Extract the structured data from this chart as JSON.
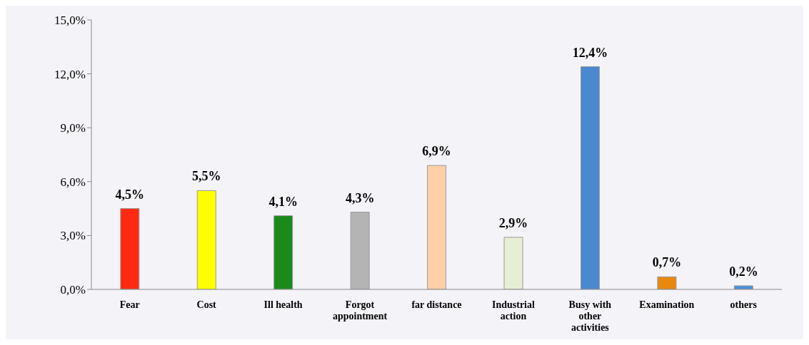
{
  "chart_data": {
    "type": "bar",
    "categories": [
      "Fear",
      "Cost",
      "Ill health",
      "Forgot appointment",
      "far distance",
      "Industrial action",
      "Busy with other activities",
      "Examination",
      "others"
    ],
    "values": [
      4.5,
      5.5,
      4.1,
      4.3,
      6.9,
      2.9,
      12.4,
      0.7,
      0.2
    ],
    "colors": [
      "#ff2a10",
      "#ffff00",
      "#1a8a1a",
      "#b4b4b4",
      "#ffd0a8",
      "#e6efd6",
      "#4a88d0",
      "#e8880e",
      "#4a90dc"
    ],
    "value_labels": [
      "4,5%",
      "5,5%",
      "4,1%",
      "4,3%",
      "6,9%",
      "2,9%",
      "12,4%",
      "0,7%",
      "0,2%"
    ],
    "ylim": [
      0,
      15
    ],
    "yticks": [
      {
        "value": 0,
        "label": "0,0%"
      },
      {
        "value": 3,
        "label": "3,0%"
      },
      {
        "value": 6,
        "label": "6,0%"
      },
      {
        "value": 9,
        "label": "9,0%"
      },
      {
        "value": 12,
        "label": "12,0%"
      },
      {
        "value": 15,
        "label": "15,0%"
      }
    ],
    "grid": false,
    "legend": false
  }
}
